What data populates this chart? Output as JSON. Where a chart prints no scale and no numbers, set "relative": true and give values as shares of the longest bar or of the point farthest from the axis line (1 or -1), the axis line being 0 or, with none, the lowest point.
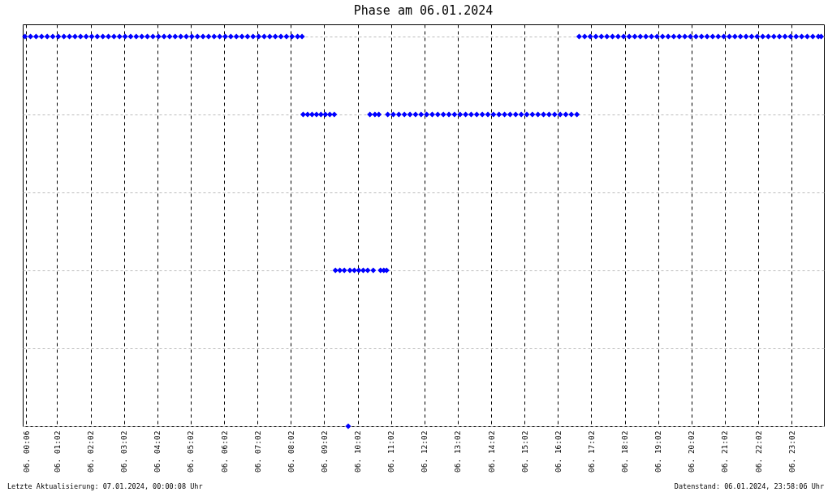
{
  "chart_data": {
    "type": "scatter",
    "title": "Phase am 06.01.2024",
    "relative": true,
    "marker": "diamond",
    "grid": true,
    "xlim": [
      "2024-01-06T00:00",
      "2024-01-07T00:00"
    ],
    "xticks": [
      {
        "value": "2024-01-06T00:06",
        "label": "06. 00:06"
      },
      {
        "value": "2024-01-06T01:02",
        "label": "06. 01:02"
      },
      {
        "value": "2024-01-06T02:02",
        "label": "06. 02:02"
      },
      {
        "value": "2024-01-06T03:02",
        "label": "06. 03:02"
      },
      {
        "value": "2024-01-06T04:02",
        "label": "06. 04:02"
      },
      {
        "value": "2024-01-06T05:02",
        "label": "06. 05:02"
      },
      {
        "value": "2024-01-06T06:02",
        "label": "06. 06:02"
      },
      {
        "value": "2024-01-06T07:02",
        "label": "06. 07:02"
      },
      {
        "value": "2024-01-06T08:02",
        "label": "06. 08:02"
      },
      {
        "value": "2024-01-06T09:02",
        "label": "06. 09:02"
      },
      {
        "value": "2024-01-06T10:02",
        "label": "06. 10:02"
      },
      {
        "value": "2024-01-06T11:02",
        "label": "06. 11:02"
      },
      {
        "value": "2024-01-06T12:02",
        "label": "06. 12:02"
      },
      {
        "value": "2024-01-06T13:02",
        "label": "06. 13:02"
      },
      {
        "value": "2024-01-06T14:02",
        "label": "06. 14:02"
      },
      {
        "value": "2024-01-06T15:02",
        "label": "06. 15:02"
      },
      {
        "value": "2024-01-06T16:02",
        "label": "06. 16:02"
      },
      {
        "value": "2024-01-06T17:02",
        "label": "06. 17:02"
      },
      {
        "value": "2024-01-06T18:02",
        "label": "06. 18:02"
      },
      {
        "value": "2024-01-06T19:02",
        "label": "06. 19:02"
      },
      {
        "value": "2024-01-06T20:02",
        "label": "06. 20:02"
      },
      {
        "value": "2024-01-06T21:02",
        "label": "06. 21:02"
      },
      {
        "value": "2024-01-06T22:02",
        "label": "06. 22:02"
      },
      {
        "value": "2024-01-06T23:02",
        "label": "06. 23:02"
      }
    ],
    "series": [
      {
        "color": "#0000ff",
        "x": [
          "2024-01-06T00:04",
          "2024-01-06T00:14",
          "2024-01-06T00:24",
          "2024-01-06T00:34",
          "2024-01-06T00:44",
          "2024-01-06T00:54",
          "2024-01-06T01:04",
          "2024-01-06T01:14",
          "2024-01-06T01:24",
          "2024-01-06T01:34",
          "2024-01-06T01:44",
          "2024-01-06T01:54",
          "2024-01-06T02:04",
          "2024-01-06T02:14",
          "2024-01-06T02:24",
          "2024-01-06T02:34",
          "2024-01-06T02:44",
          "2024-01-06T02:54",
          "2024-01-06T03:04",
          "2024-01-06T03:14",
          "2024-01-06T03:24",
          "2024-01-06T03:34",
          "2024-01-06T03:44",
          "2024-01-06T03:54",
          "2024-01-06T04:04",
          "2024-01-06T04:14",
          "2024-01-06T04:24",
          "2024-01-06T04:34",
          "2024-01-06T04:44",
          "2024-01-06T04:54",
          "2024-01-06T05:04",
          "2024-01-06T05:14",
          "2024-01-06T05:24",
          "2024-01-06T05:34",
          "2024-01-06T05:44",
          "2024-01-06T05:54",
          "2024-01-06T06:04",
          "2024-01-06T06:14",
          "2024-01-06T06:24",
          "2024-01-06T06:34",
          "2024-01-06T06:44",
          "2024-01-06T06:54",
          "2024-01-06T07:04",
          "2024-01-06T07:14",
          "2024-01-06T07:24",
          "2024-01-06T07:34",
          "2024-01-06T07:44",
          "2024-01-06T07:54",
          "2024-01-06T08:04",
          "2024-01-06T08:14",
          "2024-01-06T08:22",
          "2024-01-06T08:24",
          "2024-01-06T08:32",
          "2024-01-06T08:40",
          "2024-01-06T08:48",
          "2024-01-06T08:56",
          "2024-01-06T09:04",
          "2024-01-06T09:12",
          "2024-01-06T09:20",
          "2024-01-06T09:22",
          "2024-01-06T09:30",
          "2024-01-06T09:38",
          "2024-01-06T09:45",
          "2024-01-06T09:48",
          "2024-01-06T09:56",
          "2024-01-06T10:04",
          "2024-01-06T10:12",
          "2024-01-06T10:20",
          "2024-01-06T10:24",
          "2024-01-06T10:30",
          "2024-01-06T10:33",
          "2024-01-06T10:40",
          "2024-01-06T10:43",
          "2024-01-06T10:49",
          "2024-01-06T10:54",
          "2024-01-06T10:56",
          "2024-01-06T11:06",
          "2024-01-06T11:16",
          "2024-01-06T11:26",
          "2024-01-06T11:36",
          "2024-01-06T11:46",
          "2024-01-06T11:56",
          "2024-01-06T12:06",
          "2024-01-06T12:16",
          "2024-01-06T12:26",
          "2024-01-06T12:36",
          "2024-01-06T12:46",
          "2024-01-06T12:56",
          "2024-01-06T13:06",
          "2024-01-06T13:16",
          "2024-01-06T13:26",
          "2024-01-06T13:36",
          "2024-01-06T13:46",
          "2024-01-06T13:56",
          "2024-01-06T14:06",
          "2024-01-06T14:16",
          "2024-01-06T14:26",
          "2024-01-06T14:36",
          "2024-01-06T14:46",
          "2024-01-06T14:56",
          "2024-01-06T15:06",
          "2024-01-06T15:16",
          "2024-01-06T15:26",
          "2024-01-06T15:36",
          "2024-01-06T15:46",
          "2024-01-06T15:56",
          "2024-01-06T16:06",
          "2024-01-06T16:16",
          "2024-01-06T16:26",
          "2024-01-06T16:36",
          "2024-01-06T16:40",
          "2024-01-06T16:50",
          "2024-01-06T17:00",
          "2024-01-06T17:10",
          "2024-01-06T17:20",
          "2024-01-06T17:30",
          "2024-01-06T17:40",
          "2024-01-06T17:50",
          "2024-01-06T18:00",
          "2024-01-06T18:10",
          "2024-01-06T18:20",
          "2024-01-06T18:30",
          "2024-01-06T18:40",
          "2024-01-06T18:50",
          "2024-01-06T19:00",
          "2024-01-06T19:10",
          "2024-01-06T19:20",
          "2024-01-06T19:30",
          "2024-01-06T19:40",
          "2024-01-06T19:50",
          "2024-01-06T20:00",
          "2024-01-06T20:10",
          "2024-01-06T20:20",
          "2024-01-06T20:30",
          "2024-01-06T20:40",
          "2024-01-06T20:50",
          "2024-01-06T21:00",
          "2024-01-06T21:10",
          "2024-01-06T21:20",
          "2024-01-06T21:30",
          "2024-01-06T21:40",
          "2024-01-06T21:50",
          "2024-01-06T22:00",
          "2024-01-06T22:10",
          "2024-01-06T22:20",
          "2024-01-06T22:30",
          "2024-01-06T22:40",
          "2024-01-06T22:50",
          "2024-01-06T23:00",
          "2024-01-06T23:10",
          "2024-01-06T23:20",
          "2024-01-06T23:30",
          "2024-01-06T23:40",
          "2024-01-06T23:50",
          "2024-01-06T23:55"
        ],
        "values": [
          1,
          1,
          1,
          1,
          1,
          1,
          1,
          1,
          1,
          1,
          1,
          1,
          1,
          1,
          1,
          1,
          1,
          1,
          1,
          1,
          1,
          1,
          1,
          1,
          1,
          1,
          1,
          1,
          1,
          1,
          1,
          1,
          1,
          1,
          1,
          1,
          1,
          1,
          1,
          1,
          1,
          1,
          1,
          1,
          1,
          1,
          1,
          1,
          1,
          1,
          1,
          0.8,
          0.8,
          0.8,
          0.8,
          0.8,
          0.8,
          0.8,
          0.8,
          0.4,
          0.4,
          0.4,
          0,
          0.4,
          0.4,
          0.4,
          0.4,
          0.4,
          0.8,
          0.4,
          0.8,
          0.8,
          0.4,
          0.4,
          0.4,
          0.8,
          0.8,
          0.8,
          0.8,
          0.8,
          0.8,
          0.8,
          0.8,
          0.8,
          0.8,
          0.8,
          0.8,
          0.8,
          0.8,
          0.8,
          0.8,
          0.8,
          0.8,
          0.8,
          0.8,
          0.8,
          0.8,
          0.8,
          0.8,
          0.8,
          0.8,
          0.8,
          0.8,
          0.8,
          0.8,
          0.8,
          0.8,
          0.8,
          0.8,
          0.8,
          1,
          1,
          1,
          1,
          1,
          1,
          1,
          1,
          1,
          1,
          1,
          1,
          1,
          1,
          1,
          1,
          1,
          1,
          1,
          1,
          1,
          1,
          1,
          1,
          1,
          1,
          1,
          1,
          1,
          1,
          1,
          1,
          1,
          1,
          1,
          1,
          1,
          1,
          1,
          1,
          1,
          1,
          1,
          1,
          1
        ]
      }
    ],
    "annotations": [
      "Letzte Aktualisierung: 07.01.2024, 00:00:08 Uhr",
      "Datenstand: 06.01.2024, 23:58:06 Uhr"
    ]
  }
}
